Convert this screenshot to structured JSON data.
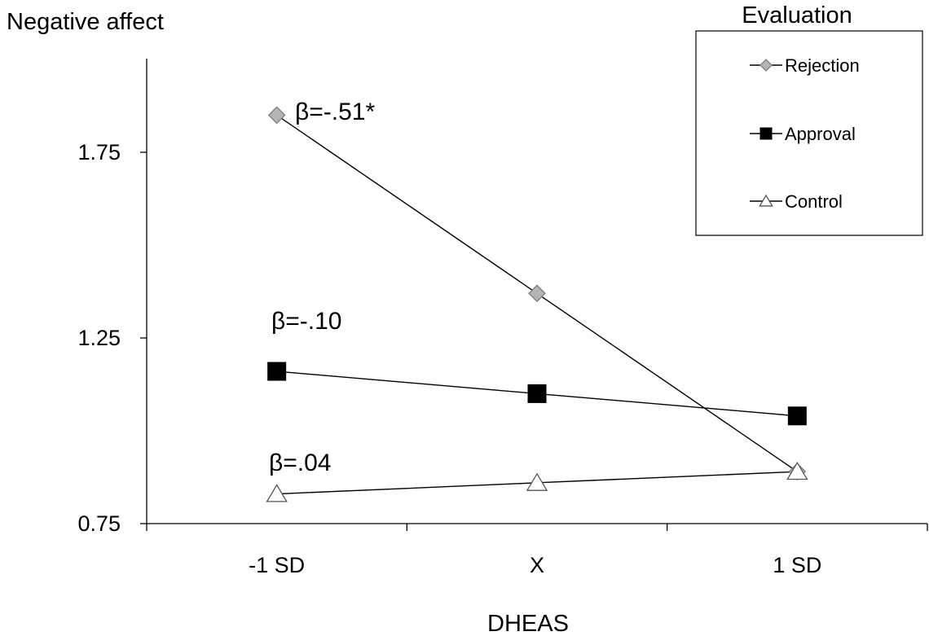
{
  "chart_data": {
    "type": "line",
    "ylabel": "Negative affect",
    "xlabel": "DHEAS",
    "categories": [
      "-1 SD",
      "X",
      "1 SD"
    ],
    "ylim": [
      0.75,
      2.0
    ],
    "yticks": [
      0.75,
      1.25,
      1.75
    ],
    "ytick_labels": [
      "0.75",
      "1.25",
      "1.75"
    ],
    "grid": false,
    "legend": {
      "title": "Evaluation",
      "position": "top-right"
    },
    "series": [
      {
        "name": "Rejection",
        "marker": "diamond",
        "color": "#b4b4b4",
        "values": [
          1.85,
          1.37,
          0.89
        ]
      },
      {
        "name": "Approval",
        "marker": "square",
        "color": "#000000",
        "values": [
          1.16,
          1.1,
          1.04
        ]
      },
      {
        "name": "Control",
        "marker": "triangle",
        "color": "#ffffff",
        "values": [
          0.83,
          0.86,
          0.89
        ]
      }
    ],
    "annotations": [
      {
        "text": "β=-.51*",
        "series": "Rejection"
      },
      {
        "text": "β=-.10",
        "series": "Approval"
      },
      {
        "text": "β=.04",
        "series": "Control"
      }
    ]
  }
}
